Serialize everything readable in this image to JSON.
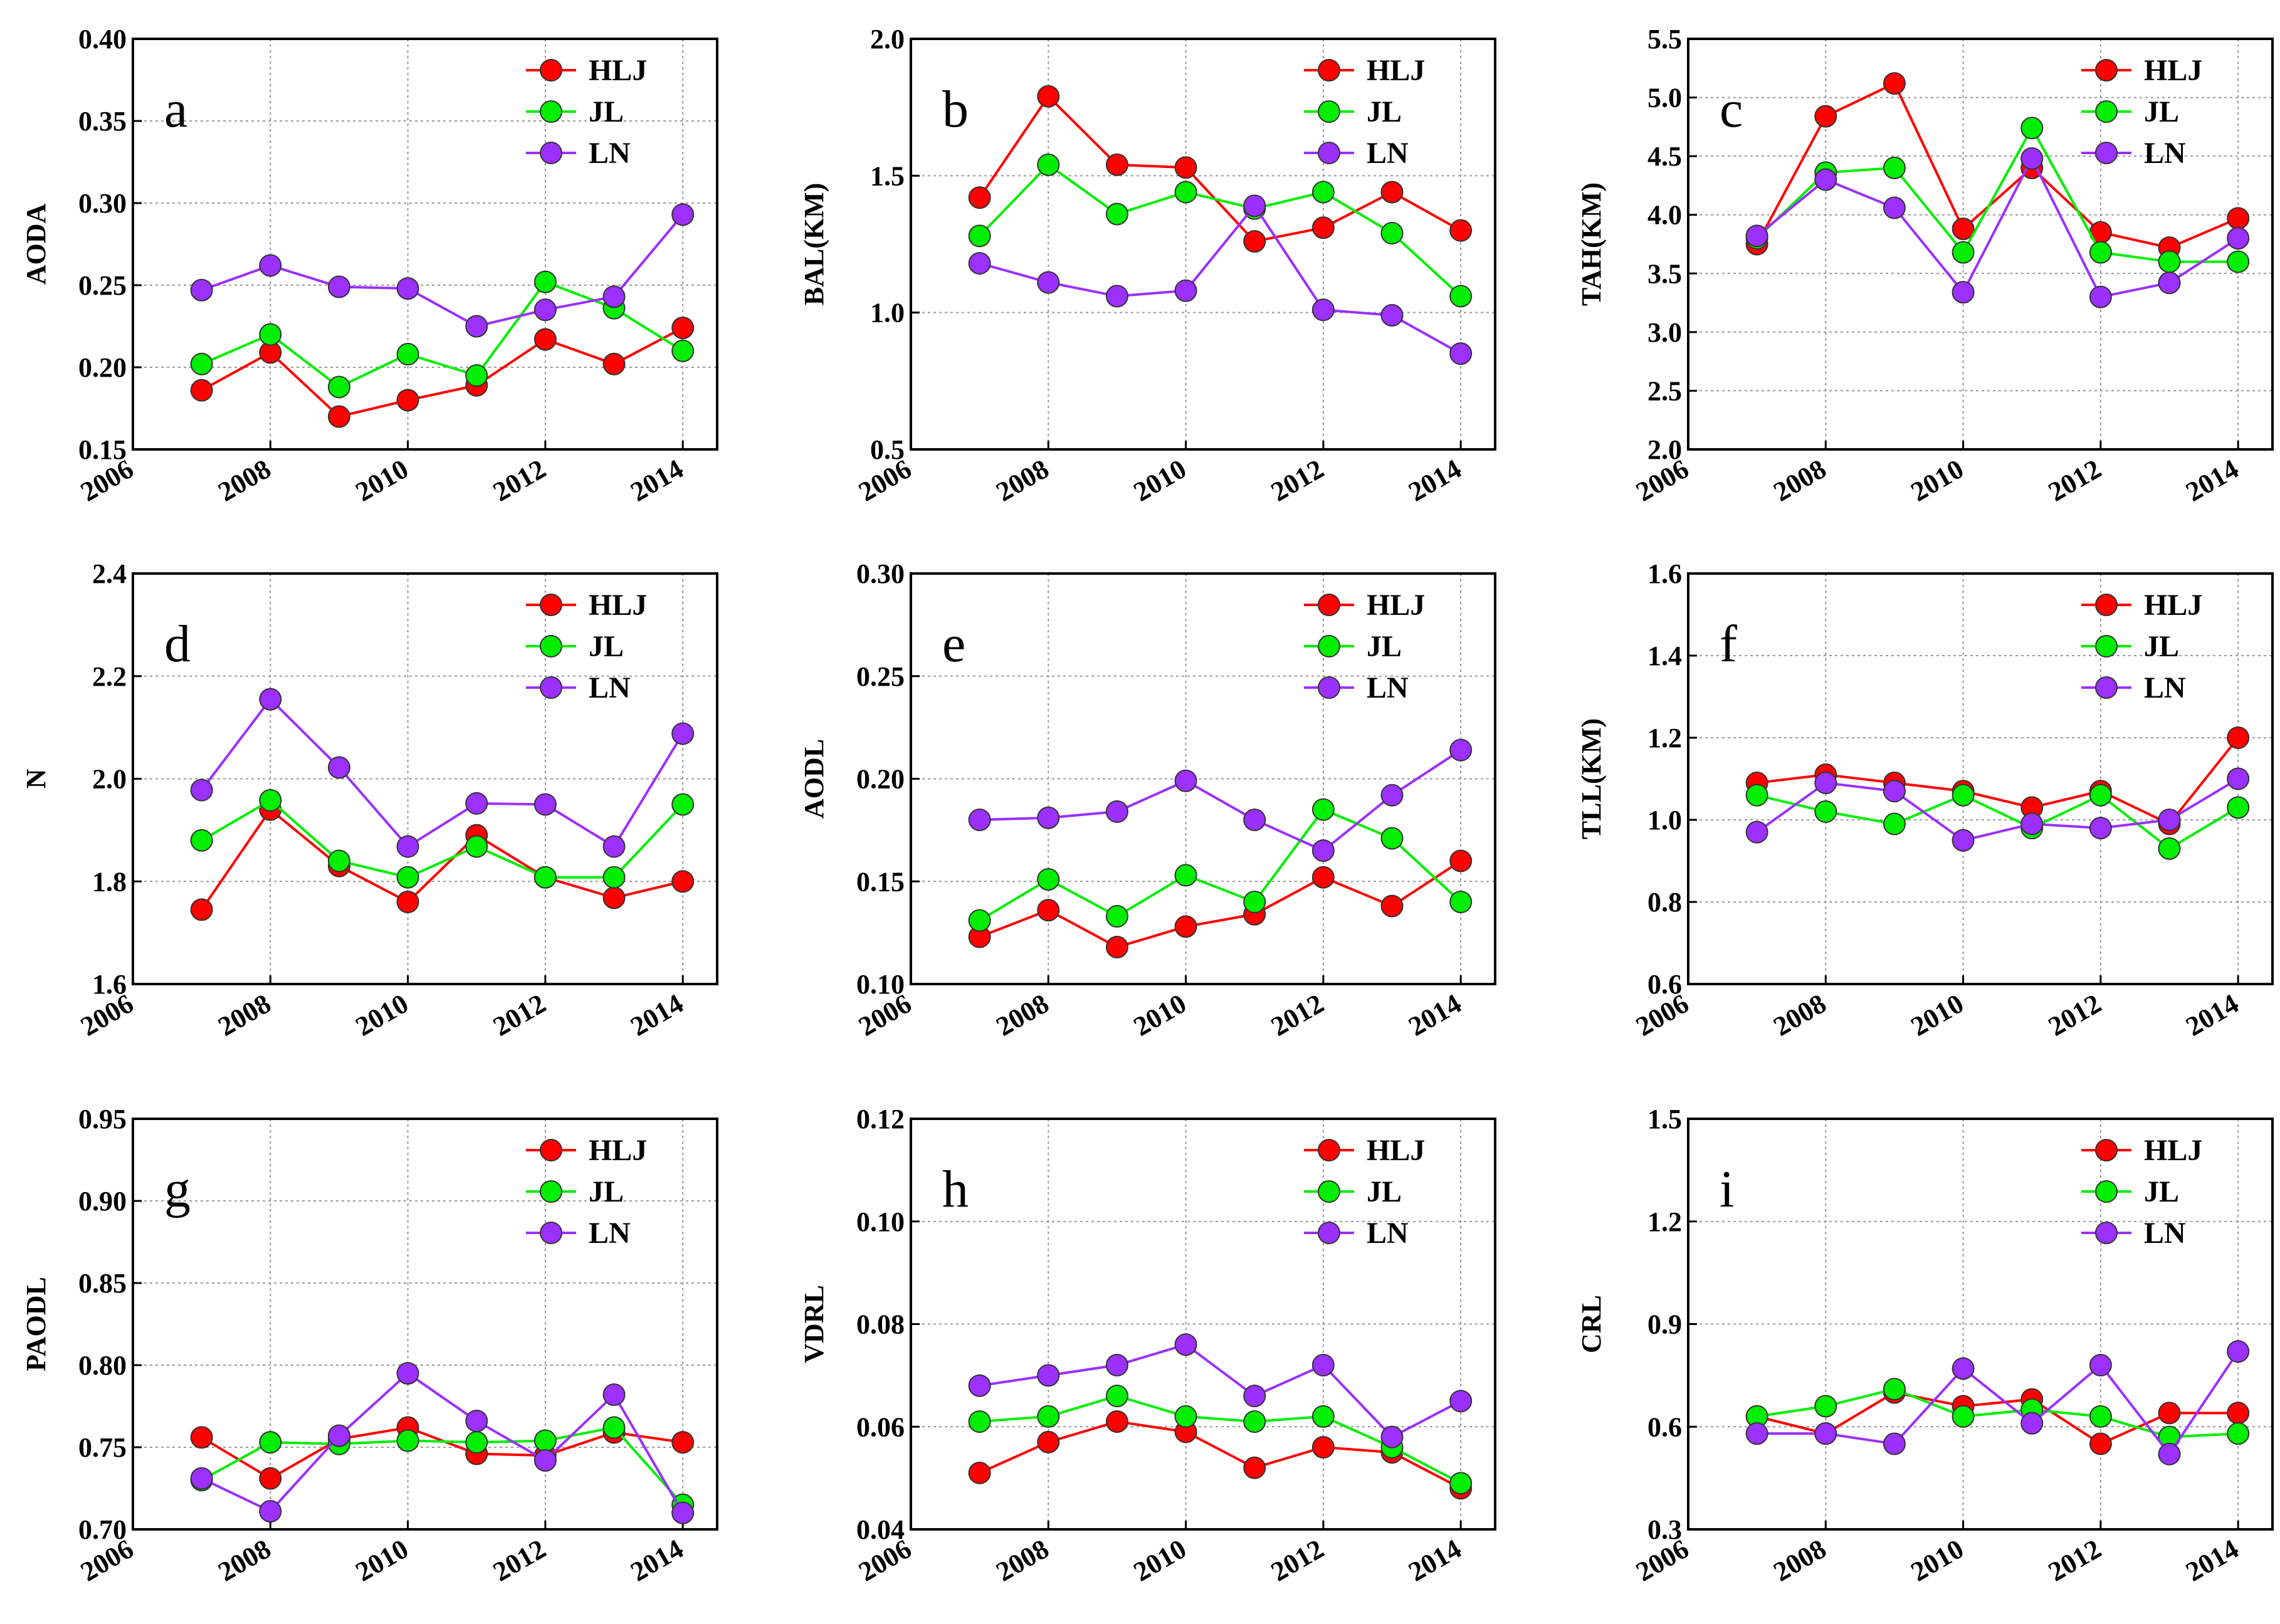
{
  "chart_data": [
    {
      "type": "line",
      "panel": "a",
      "ylabel": "AODA",
      "ylim": [
        0.15,
        0.4
      ],
      "yticks": [
        "0.15",
        "0.20",
        "0.25",
        "0.30",
        "0.35",
        "0.40"
      ],
      "xlim": [
        2006,
        2014.5
      ],
      "xticks": [
        "2006",
        "2008",
        "2010",
        "2012",
        "2014"
      ],
      "x": [
        2007,
        2008,
        2009,
        2010,
        2011,
        2012,
        2013,
        2014
      ],
      "legend_position": "top-right",
      "series": [
        {
          "name": "HLJ",
          "values": [
            0.186,
            0.209,
            0.17,
            0.18,
            0.189,
            0.217,
            0.202,
            0.224
          ]
        },
        {
          "name": "JL",
          "values": [
            0.202,
            0.22,
            0.188,
            0.208,
            0.195,
            0.252,
            0.236,
            0.21
          ]
        },
        {
          "name": "LN",
          "values": [
            0.247,
            0.262,
            0.249,
            0.248,
            0.225,
            0.235,
            0.243,
            0.293
          ]
        }
      ]
    },
    {
      "type": "line",
      "panel": "b",
      "ylabel": "BAL(KM)",
      "ylim": [
        0.5,
        2.0
      ],
      "yticks": [
        "0.5",
        "1.0",
        "1.5",
        "2.0"
      ],
      "xlim": [
        2006,
        2014.5
      ],
      "xticks": [
        "2006",
        "2008",
        "2010",
        "2012",
        "2014"
      ],
      "x": [
        2007,
        2008,
        2009,
        2010,
        2011,
        2012,
        2013,
        2014
      ],
      "legend_position": "top-right",
      "series": [
        {
          "name": "HLJ",
          "values": [
            1.42,
            1.79,
            1.54,
            1.53,
            1.26,
            1.31,
            1.44,
            1.3
          ]
        },
        {
          "name": "JL",
          "values": [
            1.28,
            1.54,
            1.36,
            1.44,
            1.38,
            1.44,
            1.29,
            1.06
          ]
        },
        {
          "name": "LN",
          "values": [
            1.18,
            1.11,
            1.06,
            1.08,
            1.39,
            1.01,
            0.99,
            0.85
          ]
        }
      ]
    },
    {
      "type": "line",
      "panel": "c",
      "ylabel": "TAH(KM)",
      "ylim": [
        2.0,
        5.5
      ],
      "yticks": [
        "2.0",
        "2.5",
        "3.0",
        "3.5",
        "4.0",
        "4.5",
        "5.0",
        "5.5"
      ],
      "xlim": [
        2006,
        2014.5
      ],
      "xticks": [
        "2006",
        "2008",
        "2010",
        "2012",
        "2014"
      ],
      "x": [
        2007,
        2008,
        2009,
        2010,
        2011,
        2012,
        2013,
        2014
      ],
      "legend_position": "top-right",
      "series": [
        {
          "name": "HLJ",
          "values": [
            3.75,
            4.84,
            5.12,
            3.88,
            4.4,
            3.85,
            3.72,
            3.97
          ]
        },
        {
          "name": "JL",
          "values": [
            3.8,
            4.36,
            4.4,
            3.68,
            4.74,
            3.68,
            3.6,
            3.6
          ]
        },
        {
          "name": "LN",
          "values": [
            3.82,
            4.3,
            4.06,
            3.34,
            4.48,
            3.3,
            3.42,
            3.8
          ]
        }
      ]
    },
    {
      "type": "line",
      "panel": "d",
      "ylabel": "N",
      "ylim": [
        1.6,
        2.4
      ],
      "yticks": [
        "1.6",
        "1.8",
        "2.0",
        "2.2",
        "2.4"
      ],
      "xlim": [
        2006,
        2014.5
      ],
      "xticks": [
        "2006",
        "2008",
        "2010",
        "2012",
        "2014"
      ],
      "x": [
        2007,
        2008,
        2009,
        2010,
        2011,
        2012,
        2013,
        2014
      ],
      "legend_position": "top-right",
      "series": [
        {
          "name": "HLJ",
          "values": [
            1.745,
            1.94,
            1.83,
            1.76,
            1.89,
            1.808,
            1.768,
            1.8
          ]
        },
        {
          "name": "JL",
          "values": [
            1.88,
            1.958,
            1.84,
            1.808,
            1.868,
            1.808,
            1.808,
            1.95
          ]
        },
        {
          "name": "LN",
          "values": [
            1.978,
            2.155,
            2.022,
            1.868,
            1.952,
            1.95,
            1.868,
            2.088
          ]
        }
      ]
    },
    {
      "type": "line",
      "panel": "e",
      "ylabel": "AODL",
      "ylim": [
        0.1,
        0.3
      ],
      "yticks": [
        "0.10",
        "0.15",
        "0.20",
        "0.25",
        "0.30"
      ],
      "xlim": [
        2006,
        2014.5
      ],
      "xticks": [
        "2006",
        "2008",
        "2010",
        "2012",
        "2014"
      ],
      "x": [
        2007,
        2008,
        2009,
        2010,
        2011,
        2012,
        2013,
        2014
      ],
      "legend_position": "top-right",
      "series": [
        {
          "name": "HLJ",
          "values": [
            0.123,
            0.136,
            0.118,
            0.128,
            0.134,
            0.152,
            0.138,
            0.16
          ]
        },
        {
          "name": "JL",
          "values": [
            0.131,
            0.151,
            0.133,
            0.153,
            0.14,
            0.185,
            0.171,
            0.14
          ]
        },
        {
          "name": "LN",
          "values": [
            0.18,
            0.181,
            0.184,
            0.199,
            0.18,
            0.165,
            0.192,
            0.214
          ]
        }
      ]
    },
    {
      "type": "line",
      "panel": "f",
      "ylabel": "TLL(KM)",
      "ylim": [
        0.6,
        1.6
      ],
      "yticks": [
        "0.6",
        "0.8",
        "1.0",
        "1.2",
        "1.4",
        "1.6"
      ],
      "xlim": [
        2006,
        2014.5
      ],
      "xticks": [
        "2006",
        "2008",
        "2010",
        "2012",
        "2014"
      ],
      "x": [
        2007,
        2008,
        2009,
        2010,
        2011,
        2012,
        2013,
        2014
      ],
      "legend_position": "top-right",
      "series": [
        {
          "name": "HLJ",
          "values": [
            1.09,
            1.11,
            1.09,
            1.07,
            1.03,
            1.07,
            0.99,
            1.2
          ]
        },
        {
          "name": "JL",
          "values": [
            1.06,
            1.02,
            0.99,
            1.06,
            0.98,
            1.06,
            0.93,
            1.03
          ]
        },
        {
          "name": "LN",
          "values": [
            0.97,
            1.09,
            1.07,
            0.95,
            0.99,
            0.98,
            1.0,
            1.1
          ]
        }
      ]
    },
    {
      "type": "line",
      "panel": "g",
      "ylabel": "PAODL",
      "ylim": [
        0.7,
        0.95
      ],
      "yticks": [
        "0.70",
        "0.75",
        "0.80",
        "0.85",
        "0.90",
        "0.95"
      ],
      "xlim": [
        2006,
        2014.5
      ],
      "xticks": [
        "2006",
        "2008",
        "2010",
        "2012",
        "2014"
      ],
      "x": [
        2007,
        2008,
        2009,
        2010,
        2011,
        2012,
        2013,
        2014
      ],
      "legend_position": "top-right",
      "series": [
        {
          "name": "HLJ",
          "values": [
            0.756,
            0.731,
            0.755,
            0.762,
            0.746,
            0.745,
            0.759,
            0.753
          ]
        },
        {
          "name": "JL",
          "values": [
            0.73,
            0.753,
            0.752,
            0.754,
            0.753,
            0.754,
            0.762,
            0.715
          ]
        },
        {
          "name": "LN",
          "values": [
            0.731,
            0.711,
            0.757,
            0.795,
            0.766,
            0.742,
            0.782,
            0.71
          ]
        }
      ]
    },
    {
      "type": "line",
      "panel": "h",
      "ylabel": "VDRL",
      "ylim": [
        0.04,
        0.12
      ],
      "yticks": [
        "0.04",
        "0.06",
        "0.08",
        "0.10",
        "0.12"
      ],
      "xlim": [
        2006,
        2014.5
      ],
      "xticks": [
        "2006",
        "2008",
        "2010",
        "2012",
        "2014"
      ],
      "x": [
        2007,
        2008,
        2009,
        2010,
        2011,
        2012,
        2013,
        2014
      ],
      "legend_position": "top-right",
      "series": [
        {
          "name": "HLJ",
          "values": [
            0.051,
            0.057,
            0.061,
            0.059,
            0.052,
            0.056,
            0.055,
            0.048
          ]
        },
        {
          "name": "JL",
          "values": [
            0.061,
            0.062,
            0.066,
            0.062,
            0.061,
            0.062,
            0.056,
            0.049
          ]
        },
        {
          "name": "LN",
          "values": [
            0.068,
            0.07,
            0.072,
            0.076,
            0.066,
            0.072,
            0.058,
            0.065
          ]
        }
      ]
    },
    {
      "type": "line",
      "panel": "i",
      "ylabel": "CRL",
      "ylim": [
        0.3,
        1.5
      ],
      "yticks": [
        "0.3",
        "0.6",
        "0.9",
        "1.2",
        "1.5"
      ],
      "xlim": [
        2006,
        2014.5
      ],
      "xticks": [
        "2006",
        "2008",
        "2010",
        "2012",
        "2014"
      ],
      "x": [
        2007,
        2008,
        2009,
        2010,
        2011,
        2012,
        2013,
        2014
      ],
      "legend_position": "top-right",
      "series": [
        {
          "name": "HLJ",
          "values": [
            0.63,
            0.58,
            0.7,
            0.66,
            0.68,
            0.55,
            0.64,
            0.64
          ]
        },
        {
          "name": "JL",
          "values": [
            0.63,
            0.66,
            0.71,
            0.63,
            0.65,
            0.63,
            0.57,
            0.58
          ]
        },
        {
          "name": "LN",
          "values": [
            0.58,
            0.58,
            0.55,
            0.77,
            0.61,
            0.78,
            0.52,
            0.82
          ]
        }
      ]
    }
  ],
  "colors": {
    "HLJ": "#ff0000",
    "JL": "#00ee00",
    "LN": "#9b30ff"
  }
}
